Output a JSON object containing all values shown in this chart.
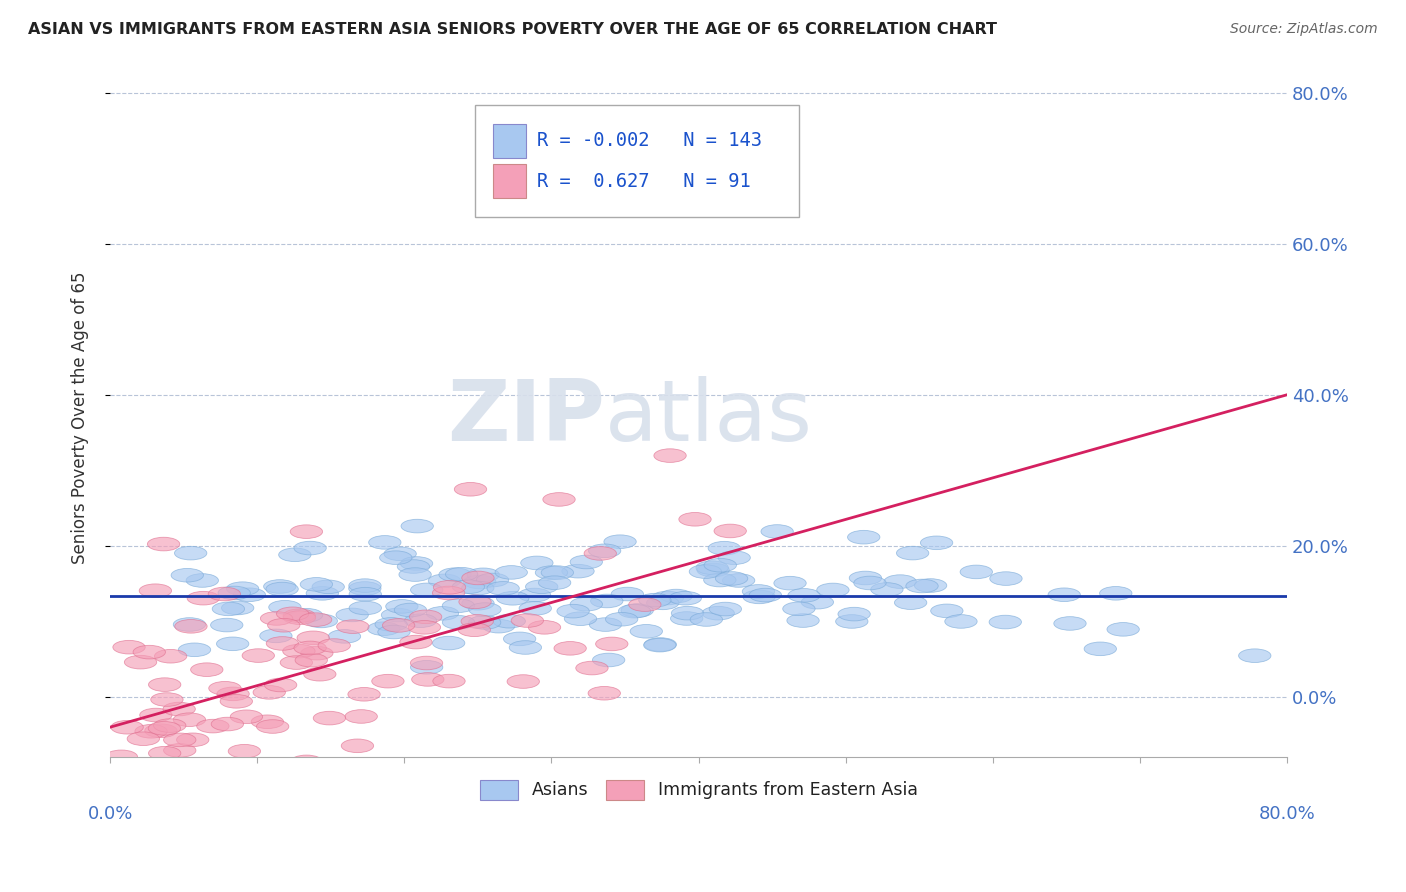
{
  "title": "ASIAN VS IMMIGRANTS FROM EASTERN ASIA SENIORS POVERTY OVER THE AGE OF 65 CORRELATION CHART",
  "source": "Source: ZipAtlas.com",
  "ylabel": "Seniors Poverty Over the Age of 65",
  "xlim": [
    0.0,
    0.8
  ],
  "ylim": [
    -0.08,
    0.82
  ],
  "ytick_values": [
    0.0,
    0.2,
    0.4,
    0.6,
    0.8
  ],
  "blue_R": -0.002,
  "blue_N": 143,
  "pink_R": 0.627,
  "pink_N": 91,
  "blue_color": "#a8c8f0",
  "pink_color": "#f4a0b8",
  "blue_edge_color": "#7aaad8",
  "pink_edge_color": "#e07090",
  "blue_line_color": "#1a3aaa",
  "pink_line_color": "#d42060",
  "legend_R_color": "#1a52cc",
  "watermark_color": "#d8e0ec",
  "background_color": "#ffffff",
  "seed": 42,
  "blue_line_y_at_0": 0.133,
  "blue_line_y_at_80": 0.133,
  "pink_line_y_at_0": -0.04,
  "pink_line_y_at_80": 0.4
}
